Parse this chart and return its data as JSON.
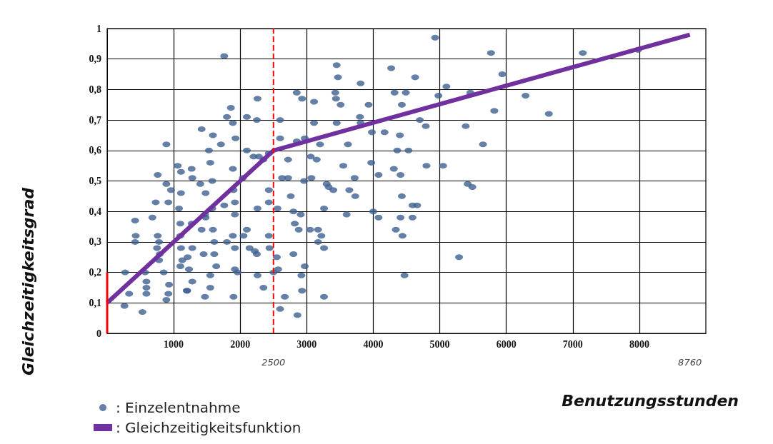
{
  "chart_data": {
    "type": "scatter",
    "ylabel": "Gleichzeitigkeitsgrad",
    "xlabel": "Benutzungsstunden",
    "xlim": [
      0,
      9000
    ],
    "xticks": [
      1000,
      2000,
      3000,
      4000,
      5000,
      6000,
      7000,
      8000
    ],
    "x2lim": [
      0,
      9000
    ],
    "x2ticks": [
      2500,
      8760
    ],
    "ylim": [
      0,
      1
    ],
    "yticks": [
      0,
      {
        "value": 0.1,
        "label": "0,1"
      },
      {
        "value": 0.2,
        "label": "0,2"
      },
      {
        "value": 0.3,
        "label": "0,3"
      },
      {
        "value": 0.4,
        "label": "0,4"
      },
      {
        "value": 0.5,
        "label": "0,5"
      },
      {
        "value": 0.6,
        "label": "0,6"
      },
      {
        "value": 0.7,
        "label": "0,7"
      },
      {
        "value": 0.8,
        "label": "0,8"
      },
      {
        "value": 0.9,
        "label": "0,9"
      },
      1
    ],
    "grid": true,
    "legend": "bottom left",
    "marker": "circle",
    "ref_lines": [
      {
        "axis": "x",
        "value": 2500,
        "color": "#ff0000",
        "line_style": "dashed"
      }
    ],
    "series": [
      {
        "name": ": Einzelentnahme",
        "color": "#3d6091",
        "x": [
          1760,
          2260,
          1860,
          1800,
          1890,
          2100,
          2250,
          1420,
          1590,
          1930,
          890,
          1710,
          1530,
          2100,
          2200,
          2350,
          2280,
          1550,
          1060,
          1270,
          1110,
          760,
          1280,
          1890,
          2040,
          890,
          1400,
          1580,
          960,
          1110,
          1480,
          1900,
          2430,
          730,
          920,
          1080,
          1580,
          1760,
          1920,
          2260,
          2430,
          1470,
          1920,
          420,
          680,
          1480,
          1100,
          1270,
          1420,
          1590,
          2100,
          430,
          1100,
          760,
          1890,
          2050,
          2430,
          420,
          780,
          1610,
          1800,
          750,
          1110,
          1280,
          1920,
          2140,
          2440,
          2220,
          790,
          1210,
          1450,
          1610,
          2250,
          780,
          1130,
          1100,
          1640,
          1230,
          1920,
          270,
          570,
          850,
          1960,
          2260,
          590,
          930,
          1550,
          1280,
          590,
          1200,
          1550,
          2350,
          330,
          590,
          920,
          1200,
          890,
          1470,
          1900,
          260,
          530,
          4930,
          3450,
          4270,
          3470,
          4630,
          3810,
          2850,
          3430,
          4320,
          4490,
          2930,
          3440,
          4980,
          3110,
          3510,
          3930,
          4430,
          2600,
          3110,
          3450,
          3800,
          3810,
          4700,
          4790,
          3980,
          4170,
          4400,
          2600,
          2850,
          2970,
          3200,
          3620,
          4360,
          4530,
          2430,
          2720,
          3060,
          3150,
          3550,
          3970,
          4800,
          5050,
          2630,
          2720,
          2960,
          3070,
          4080,
          4310,
          4410,
          3720,
          3300,
          3330,
          3400,
          3640,
          3730,
          2760,
          4430,
          2560,
          2800,
          2910,
          3260,
          3600,
          4000,
          4080,
          4410,
          4590,
          4660,
          4590,
          2820,
          2880,
          3050,
          3170,
          3220,
          3170,
          3260,
          4340,
          4440,
          2550,
          2800,
          2570,
          2500,
          2970,
          2920,
          2930,
          2670,
          3260,
          2600,
          2860,
          4470,
          5770,
          7150,
          7980,
          5940,
          5100,
          5460,
          6290,
          5820,
          6640,
          5390,
          5650,
          5420,
          5490,
          5290
        ],
        "values": [
          0.91,
          0.77,
          0.74,
          0.71,
          0.69,
          0.71,
          0.7,
          0.67,
          0.65,
          0.64,
          0.62,
          0.62,
          0.6,
          0.6,
          0.58,
          0.57,
          0.58,
          0.56,
          0.55,
          0.54,
          0.53,
          0.52,
          0.51,
          0.54,
          0.51,
          0.49,
          0.49,
          0.5,
          0.47,
          0.46,
          0.46,
          0.47,
          0.47,
          0.43,
          0.43,
          0.41,
          0.41,
          0.42,
          0.43,
          0.41,
          0.43,
          0.39,
          0.39,
          0.37,
          0.38,
          0.38,
          0.36,
          0.36,
          0.34,
          0.34,
          0.34,
          0.32,
          0.32,
          0.32,
          0.32,
          0.32,
          0.32,
          0.3,
          0.3,
          0.3,
          0.3,
          0.28,
          0.28,
          0.28,
          0.28,
          0.28,
          0.28,
          0.27,
          0.26,
          0.25,
          0.26,
          0.26,
          0.26,
          0.24,
          0.24,
          0.22,
          0.22,
          0.21,
          0.21,
          0.2,
          0.2,
          0.2,
          0.2,
          0.19,
          0.17,
          0.16,
          0.19,
          0.17,
          0.15,
          0.14,
          0.15,
          0.15,
          0.13,
          0.13,
          0.13,
          0.14,
          0.11,
          0.12,
          0.12,
          0.09,
          0.07,
          0.97,
          0.88,
          0.87,
          0.84,
          0.84,
          0.82,
          0.79,
          0.79,
          0.79,
          0.79,
          0.77,
          0.77,
          0.78,
          0.76,
          0.75,
          0.75,
          0.75,
          0.7,
          0.69,
          0.69,
          0.71,
          0.69,
          0.7,
          0.68,
          0.66,
          0.66,
          0.65,
          0.64,
          0.63,
          0.64,
          0.62,
          0.62,
          0.6,
          0.6,
          0.59,
          0.57,
          0.58,
          0.57,
          0.55,
          0.56,
          0.55,
          0.55,
          0.51,
          0.51,
          0.5,
          0.51,
          0.52,
          0.54,
          0.52,
          0.51,
          0.49,
          0.48,
          0.47,
          0.47,
          0.45,
          0.45,
          0.45,
          0.41,
          0.4,
          0.39,
          0.41,
          0.39,
          0.4,
          0.38,
          0.38,
          0.42,
          0.42,
          0.38,
          0.36,
          0.34,
          0.34,
          0.34,
          0.32,
          0.3,
          0.28,
          0.34,
          0.32,
          0.25,
          0.26,
          0.21,
          0.2,
          0.22,
          0.19,
          0.14,
          0.12,
          0.12,
          0.08,
          0.06,
          0.19,
          0.92,
          0.92,
          0.93,
          0.85,
          0.81,
          0.79,
          0.78,
          0.73,
          0.72,
          0.68,
          0.62,
          0.49,
          0.48,
          0.25
        ]
      },
      {
        "name": ": Gleichzeitigkeitsfunktion",
        "type": "line",
        "color": "#7030a0",
        "marker": "none",
        "x": [
          0,
          2500,
          8760
        ],
        "values": [
          0.1,
          0.6,
          0.98
        ]
      },
      {
        "type": "line",
        "color": "#ff0000",
        "marker": "none",
        "x": [
          0,
          0
        ],
        "values": [
          0,
          0.2
        ]
      }
    ]
  }
}
